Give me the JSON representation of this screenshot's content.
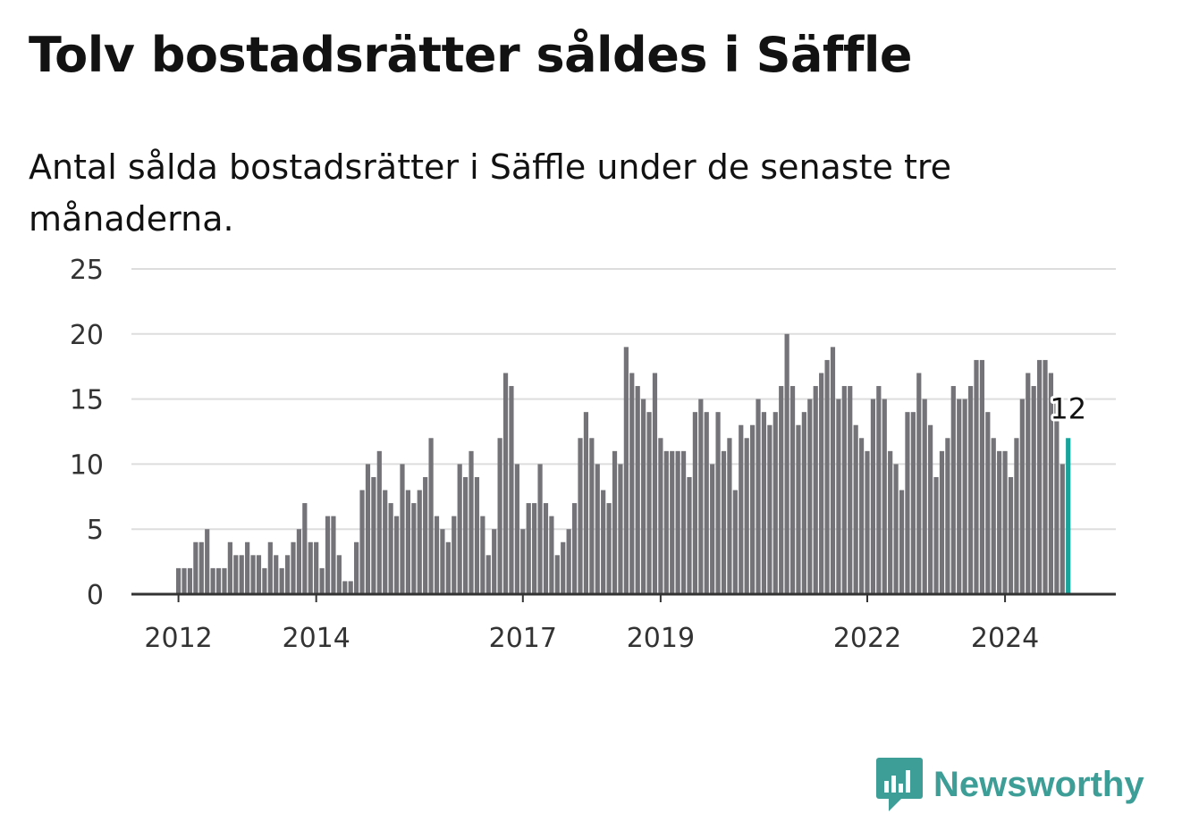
{
  "title": "Tolv bostadsrätter såldes i Säffle",
  "subtitle": "Antal sålda bostadsrätter i Säffle under de senaste tre månaderna.",
  "brand": {
    "name": "Newsworthy",
    "icon": "newsworthy-logo-icon"
  },
  "colors": {
    "bar": "#747378",
    "highlight": "#18a49b",
    "grid": "#dddddd",
    "axis": "#333333",
    "brand": "#3d9e97"
  },
  "chart_data": {
    "type": "bar",
    "title": "",
    "xlabel": "",
    "ylabel": "",
    "ylim": [
      0,
      25
    ],
    "yticks": [
      "0",
      "5",
      "10",
      "15",
      "20",
      "25"
    ],
    "xticks": [
      {
        "label": "2012",
        "index": 0
      },
      {
        "label": "2014",
        "index": 24
      },
      {
        "label": "2017",
        "index": 60
      },
      {
        "label": "2019",
        "index": 84
      },
      {
        "label": "2022",
        "index": 120
      },
      {
        "label": "2024",
        "index": 144
      }
    ],
    "values": [
      2,
      2,
      2,
      4,
      4,
      5,
      2,
      2,
      2,
      4,
      3,
      3,
      4,
      3,
      3,
      2,
      4,
      3,
      2,
      3,
      4,
      5,
      7,
      4,
      4,
      2,
      6,
      6,
      3,
      1,
      1,
      4,
      8,
      10,
      9,
      11,
      8,
      7,
      6,
      10,
      8,
      7,
      8,
      9,
      12,
      6,
      5,
      4,
      6,
      10,
      9,
      11,
      9,
      6,
      3,
      5,
      12,
      17,
      16,
      10,
      5,
      7,
      7,
      10,
      7,
      6,
      3,
      4,
      5,
      7,
      12,
      14,
      12,
      10,
      8,
      7,
      11,
      10,
      19,
      17,
      16,
      15,
      14,
      17,
      12,
      11,
      11,
      11,
      11,
      9,
      14,
      15,
      14,
      10,
      14,
      11,
      12,
      8,
      13,
      12,
      13,
      15,
      14,
      13,
      14,
      16,
      20,
      16,
      13,
      14,
      15,
      16,
      17,
      18,
      19,
      15,
      16,
      16,
      13,
      12,
      11,
      15,
      16,
      15,
      11,
      10,
      8,
      14,
      14,
      17,
      15,
      13,
      9,
      11,
      12,
      16,
      15,
      15,
      16,
      18,
      18,
      14,
      12,
      11,
      11,
      9,
      12,
      15,
      17,
      16,
      18,
      18,
      17,
      15,
      10,
      12
    ],
    "highlight": {
      "index": 155,
      "value": 12,
      "label": "12"
    }
  }
}
